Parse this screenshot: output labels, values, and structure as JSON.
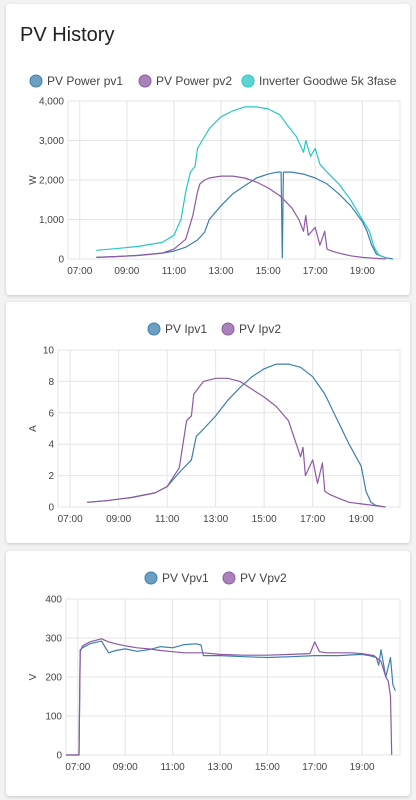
{
  "page": {
    "title": "PV History"
  },
  "colors": {
    "pv1": "#3b7fad",
    "pv2": "#8e59a3",
    "inverter": "#26c6c6"
  },
  "chart_data": [
    {
      "type": "line",
      "ylabel": "W",
      "ylim": [
        0,
        4000
      ],
      "yticks": [
        "0",
        "1,000",
        "2,000",
        "3,000",
        "4,000"
      ],
      "yticks_values": [
        0,
        1000,
        2000,
        3000,
        4000
      ],
      "xlim": [
        6.5,
        20.6
      ],
      "xticks": [
        "07:00",
        "09:00",
        "11:00",
        "13:00",
        "15:00",
        "17:00",
        "19:00"
      ],
      "xticks_values": [
        7,
        9,
        11,
        13,
        15,
        17,
        19
      ],
      "series": [
        {
          "name": "PV Power pv1",
          "color": "#3b7fad",
          "x": [
            7.7,
            8.5,
            9.5,
            10.5,
            11.0,
            11.5,
            12.0,
            12.3,
            12.5,
            13.0,
            13.5,
            14.0,
            14.5,
            15.0,
            15.4,
            15.55,
            15.6,
            15.65,
            16.0,
            16.5,
            17.0,
            17.5,
            18.0,
            18.5,
            19.0,
            19.2,
            19.4,
            19.6,
            20.0,
            20.3
          ],
          "y": [
            40,
            60,
            90,
            150,
            200,
            300,
            480,
            680,
            1000,
            1350,
            1650,
            1850,
            2050,
            2150,
            2200,
            2200,
            30,
            2200,
            2200,
            2150,
            2050,
            1900,
            1650,
            1350,
            950,
            700,
            350,
            120,
            30,
            0
          ]
        },
        {
          "name": "PV Power pv2",
          "color": "#8e59a3",
          "x": [
            7.7,
            8.5,
            9.5,
            10.5,
            11.0,
            11.5,
            11.8,
            12.0,
            12.1,
            12.3,
            12.5,
            13.0,
            13.5,
            14.0,
            14.5,
            15.0,
            15.5,
            16.0,
            16.3,
            16.5,
            16.6,
            16.7,
            17.0,
            17.2,
            17.4,
            17.5,
            17.7,
            18.0,
            18.5,
            19.0,
            19.5,
            20.0
          ],
          "y": [
            40,
            60,
            90,
            150,
            250,
            500,
            1100,
            1700,
            1900,
            2000,
            2050,
            2100,
            2100,
            2050,
            1950,
            1800,
            1600,
            1300,
            1000,
            700,
            1100,
            600,
            800,
            350,
            700,
            250,
            200,
            150,
            80,
            40,
            20,
            0
          ]
        },
        {
          "name": "Inverter Goodwe 5k 3fase",
          "color": "#26c6c6",
          "x": [
            7.7,
            8.5,
            9.5,
            10.5,
            11.0,
            11.3,
            11.5,
            11.7,
            11.9,
            12.0,
            12.2,
            12.5,
            13.0,
            13.5,
            14.0,
            14.5,
            15.0,
            15.5,
            15.8,
            16.2,
            16.5,
            16.6,
            16.8,
            17.0,
            17.2,
            17.5,
            18.0,
            18.5,
            19.0,
            19.3,
            19.5,
            19.7,
            20.0
          ],
          "y": [
            220,
            260,
            320,
            420,
            600,
            1000,
            1700,
            2200,
            2350,
            2800,
            3000,
            3300,
            3600,
            3750,
            3850,
            3850,
            3800,
            3650,
            3400,
            3100,
            2700,
            3000,
            2600,
            2800,
            2400,
            2200,
            1900,
            1500,
            1000,
            700,
            300,
            100,
            30
          ]
        }
      ]
    },
    {
      "type": "line",
      "ylabel": "A",
      "ylim": [
        0,
        10
      ],
      "yticks": [
        "0",
        "2",
        "4",
        "6",
        "8",
        "10"
      ],
      "yticks_values": [
        0,
        2,
        4,
        6,
        8,
        10
      ],
      "xlim": [
        6.5,
        20.6
      ],
      "xticks": [
        "07:00",
        "09:00",
        "11:00",
        "13:00",
        "15:00",
        "17:00",
        "19:00"
      ],
      "xticks_values": [
        7,
        9,
        11,
        13,
        15,
        17,
        19
      ],
      "series": [
        {
          "name": "PV Ipv1",
          "color": "#3b7fad",
          "x": [
            7.7,
            8.5,
            9.5,
            10.5,
            11.0,
            11.5,
            12.0,
            12.2,
            12.4,
            13.0,
            13.5,
            14.0,
            14.5,
            15.0,
            15.5,
            16.0,
            16.5,
            17.0,
            17.5,
            18.0,
            18.5,
            19.0,
            19.2,
            19.4,
            19.6,
            20.0
          ],
          "y": [
            0.3,
            0.4,
            0.6,
            0.9,
            1.3,
            2.2,
            3.0,
            4.5,
            4.8,
            5.8,
            6.8,
            7.6,
            8.3,
            8.8,
            9.1,
            9.1,
            8.9,
            8.3,
            7.2,
            5.6,
            4.0,
            2.6,
            1.0,
            0.3,
            0.1,
            0.0
          ]
        },
        {
          "name": "PV Ipv2",
          "color": "#8e59a3",
          "x": [
            7.7,
            8.5,
            9.5,
            10.5,
            11.0,
            11.5,
            11.8,
            12.0,
            12.1,
            12.4,
            12.5,
            13.0,
            13.5,
            14.0,
            14.5,
            15.0,
            15.5,
            16.0,
            16.5,
            16.6,
            16.7,
            17.0,
            17.2,
            17.4,
            17.5,
            17.7,
            18.0,
            18.5,
            19.0,
            19.5,
            20.0
          ],
          "y": [
            0.3,
            0.4,
            0.6,
            0.9,
            1.3,
            2.5,
            5.5,
            5.8,
            7.2,
            7.8,
            8.0,
            8.2,
            8.2,
            8.0,
            7.5,
            7.0,
            6.4,
            5.5,
            3.2,
            3.8,
            2.0,
            3.0,
            1.5,
            2.8,
            1.0,
            0.8,
            0.6,
            0.3,
            0.2,
            0.1,
            0.0
          ]
        }
      ]
    },
    {
      "type": "line",
      "ylabel": "V",
      "ylim": [
        0,
        400
      ],
      "yticks": [
        "0",
        "100",
        "200",
        "300",
        "400"
      ],
      "yticks_values": [
        0,
        100,
        200,
        300,
        400
      ],
      "xlim": [
        6.5,
        20.6
      ],
      "xticks": [
        "07:00",
        "09:00",
        "11:00",
        "13:00",
        "15:00",
        "17:00",
        "19:00"
      ],
      "xticks_values": [
        7,
        9,
        11,
        13,
        15,
        17,
        19
      ],
      "series": [
        {
          "name": "PV Vpv1",
          "color": "#3b7fad",
          "x": [
            6.5,
            7.05,
            7.1,
            7.2,
            7.5,
            8.0,
            8.3,
            8.6,
            9.0,
            9.5,
            10.0,
            10.5,
            11.0,
            11.5,
            12.0,
            12.2,
            12.3,
            13.0,
            14.0,
            15.0,
            16.0,
            17.0,
            18.0,
            19.0,
            19.3,
            19.6,
            19.7,
            19.8,
            20.0,
            20.2,
            20.3,
            20.4
          ],
          "y": [
            0,
            0,
            270,
            275,
            285,
            292,
            262,
            268,
            272,
            266,
            270,
            278,
            275,
            283,
            285,
            282,
            255,
            255,
            252,
            250,
            252,
            255,
            255,
            258,
            255,
            250,
            230,
            270,
            200,
            250,
            180,
            165
          ]
        },
        {
          "name": "PV Vpv2",
          "color": "#8e59a3",
          "x": [
            6.5,
            7.05,
            7.1,
            7.2,
            7.5,
            8.0,
            8.3,
            8.6,
            9.0,
            9.5,
            10.0,
            10.5,
            11.0,
            11.5,
            12.0,
            12.3,
            13.0,
            14.0,
            15.0,
            16.0,
            16.8,
            17.0,
            17.2,
            17.5,
            18.0,
            18.5,
            19.0,
            19.5,
            19.8,
            20.0,
            20.1,
            20.2,
            20.25
          ],
          "y": [
            0,
            0,
            265,
            280,
            290,
            298,
            290,
            285,
            280,
            275,
            272,
            268,
            265,
            262,
            262,
            262,
            258,
            256,
            256,
            258,
            260,
            290,
            265,
            262,
            262,
            262,
            260,
            255,
            240,
            200,
            190,
            150,
            0
          ]
        }
      ]
    }
  ]
}
